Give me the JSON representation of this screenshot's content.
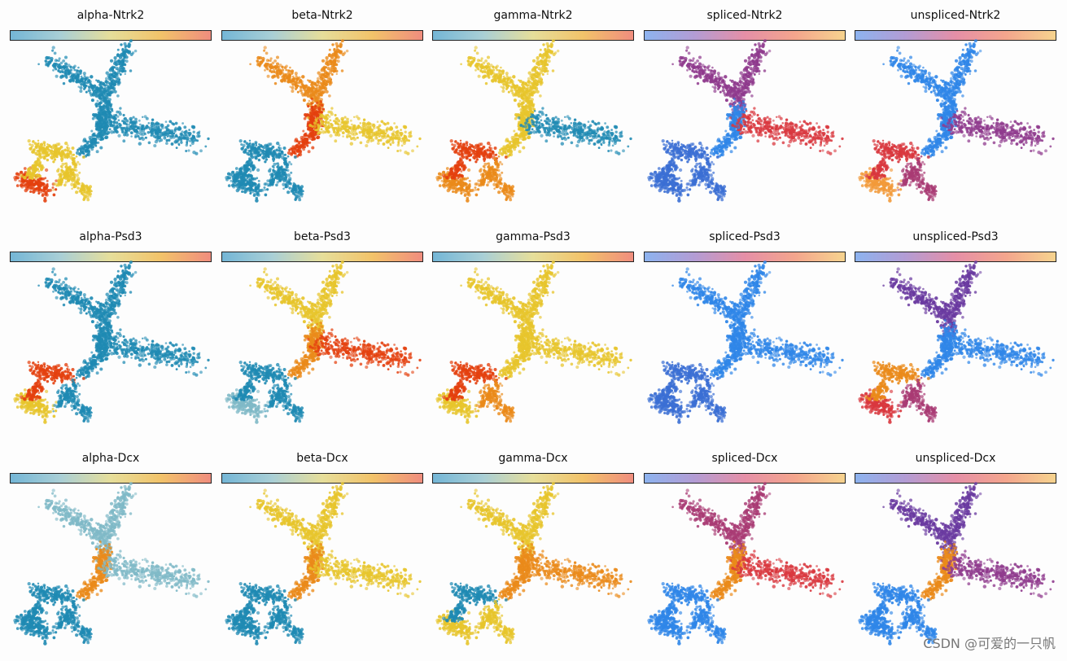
{
  "chart_data": {
    "type": "scatter",
    "description_note": "",
    "colormaps": {
      "params": [
        "#74b6d6",
        "#a9cfd6",
        "#e6de9a",
        "#f2c36a",
        "#f08d7e"
      ],
      "counts": [
        "#8db3ef",
        "#b39cd4",
        "#e58fa7",
        "#f4a58d",
        "#f6d38e"
      ]
    },
    "point_colors": {
      "blue": "#1f8ab3",
      "lightblue": "#7fb9c7",
      "yellow": "#e7c52c",
      "orange": "#ea8a1a",
      "red": "#e4400e",
      "violet": "#6a3aa0",
      "purple": "#8f3a8d",
      "plum": "#a93b74",
      "crimson": "#d9373e",
      "royal": "#3b6fd4",
      "sky": "#2f86e8",
      "peach": "#f29a3a"
    },
    "panels": [
      {
        "title": "alpha-Ntrk2",
        "cmap": "params",
        "regions": {
          "top": "blue",
          "center": "blue",
          "right": "blue",
          "leftTop": "yellow",
          "leftBottom": "red",
          "bottom": "yellow"
        }
      },
      {
        "title": "beta-Ntrk2",
        "cmap": "params",
        "regions": {
          "top": "orange",
          "center": "red",
          "right": "yellow",
          "leftTop": "blue",
          "leftBottom": "blue",
          "bottom": "blue"
        }
      },
      {
        "title": "gamma-Ntrk2",
        "cmap": "params",
        "regions": {
          "top": "yellow",
          "center": "yellow",
          "right": "blue",
          "leftTop": "red",
          "leftBottom": "orange",
          "bottom": "orange"
        }
      },
      {
        "title": "spliced-Ntrk2",
        "cmap": "counts",
        "regions": {
          "top": "purple",
          "center": "sky",
          "right": "crimson",
          "leftTop": "royal",
          "leftBottom": "royal",
          "bottom": "royal"
        }
      },
      {
        "title": "unspliced-Ntrk2",
        "cmap": "counts",
        "regions": {
          "top": "sky",
          "center": "sky",
          "right": "purple",
          "leftTop": "crimson",
          "leftBottom": "peach",
          "bottom": "plum"
        }
      },
      {
        "title": "alpha-Psd3",
        "cmap": "params",
        "regions": {
          "top": "blue",
          "center": "blue",
          "right": "blue",
          "leftTop": "red",
          "leftBottom": "yellow",
          "bottom": "blue"
        }
      },
      {
        "title": "beta-Psd3",
        "cmap": "params",
        "regions": {
          "top": "yellow",
          "center": "orange",
          "right": "red",
          "leftTop": "blue",
          "leftBottom": "lightblue",
          "bottom": "blue"
        }
      },
      {
        "title": "gamma-Psd3",
        "cmap": "params",
        "regions": {
          "top": "yellow",
          "center": "yellow",
          "right": "yellow",
          "leftTop": "red",
          "leftBottom": "yellow",
          "bottom": "orange"
        }
      },
      {
        "title": "spliced-Psd3",
        "cmap": "counts",
        "regions": {
          "top": "sky",
          "center": "sky",
          "right": "sky",
          "leftTop": "royal",
          "leftBottom": "royal",
          "bottom": "royal"
        }
      },
      {
        "title": "unspliced-Psd3",
        "cmap": "counts",
        "regions": {
          "top": "violet",
          "center": "sky",
          "right": "sky",
          "leftTop": "orange",
          "leftBottom": "crimson",
          "bottom": "plum"
        }
      },
      {
        "title": "alpha-Dcx",
        "cmap": "params",
        "regions": {
          "top": "lightblue",
          "center": "orange",
          "right": "lightblue",
          "leftTop": "blue",
          "leftBottom": "blue",
          "bottom": "blue"
        }
      },
      {
        "title": "beta-Dcx",
        "cmap": "params",
        "regions": {
          "top": "yellow",
          "center": "orange",
          "right": "yellow",
          "leftTop": "blue",
          "leftBottom": "blue",
          "bottom": "blue"
        }
      },
      {
        "title": "gamma-Dcx",
        "cmap": "params",
        "regions": {
          "top": "yellow",
          "center": "orange",
          "right": "orange",
          "leftTop": "blue",
          "leftBottom": "yellow",
          "bottom": "yellow"
        }
      },
      {
        "title": "spliced-Dcx",
        "cmap": "counts",
        "regions": {
          "top": "plum",
          "center": "orange",
          "right": "crimson",
          "leftTop": "sky",
          "leftBottom": "sky",
          "bottom": "sky"
        }
      },
      {
        "title": "unspliced-Dcx",
        "cmap": "counts",
        "regions": {
          "top": "violet",
          "center": "orange",
          "right": "purple",
          "leftTop": "sky",
          "leftBottom": "sky",
          "bottom": "sky"
        }
      }
    ]
  },
  "watermark": "CSDN @可爱的一只帆"
}
